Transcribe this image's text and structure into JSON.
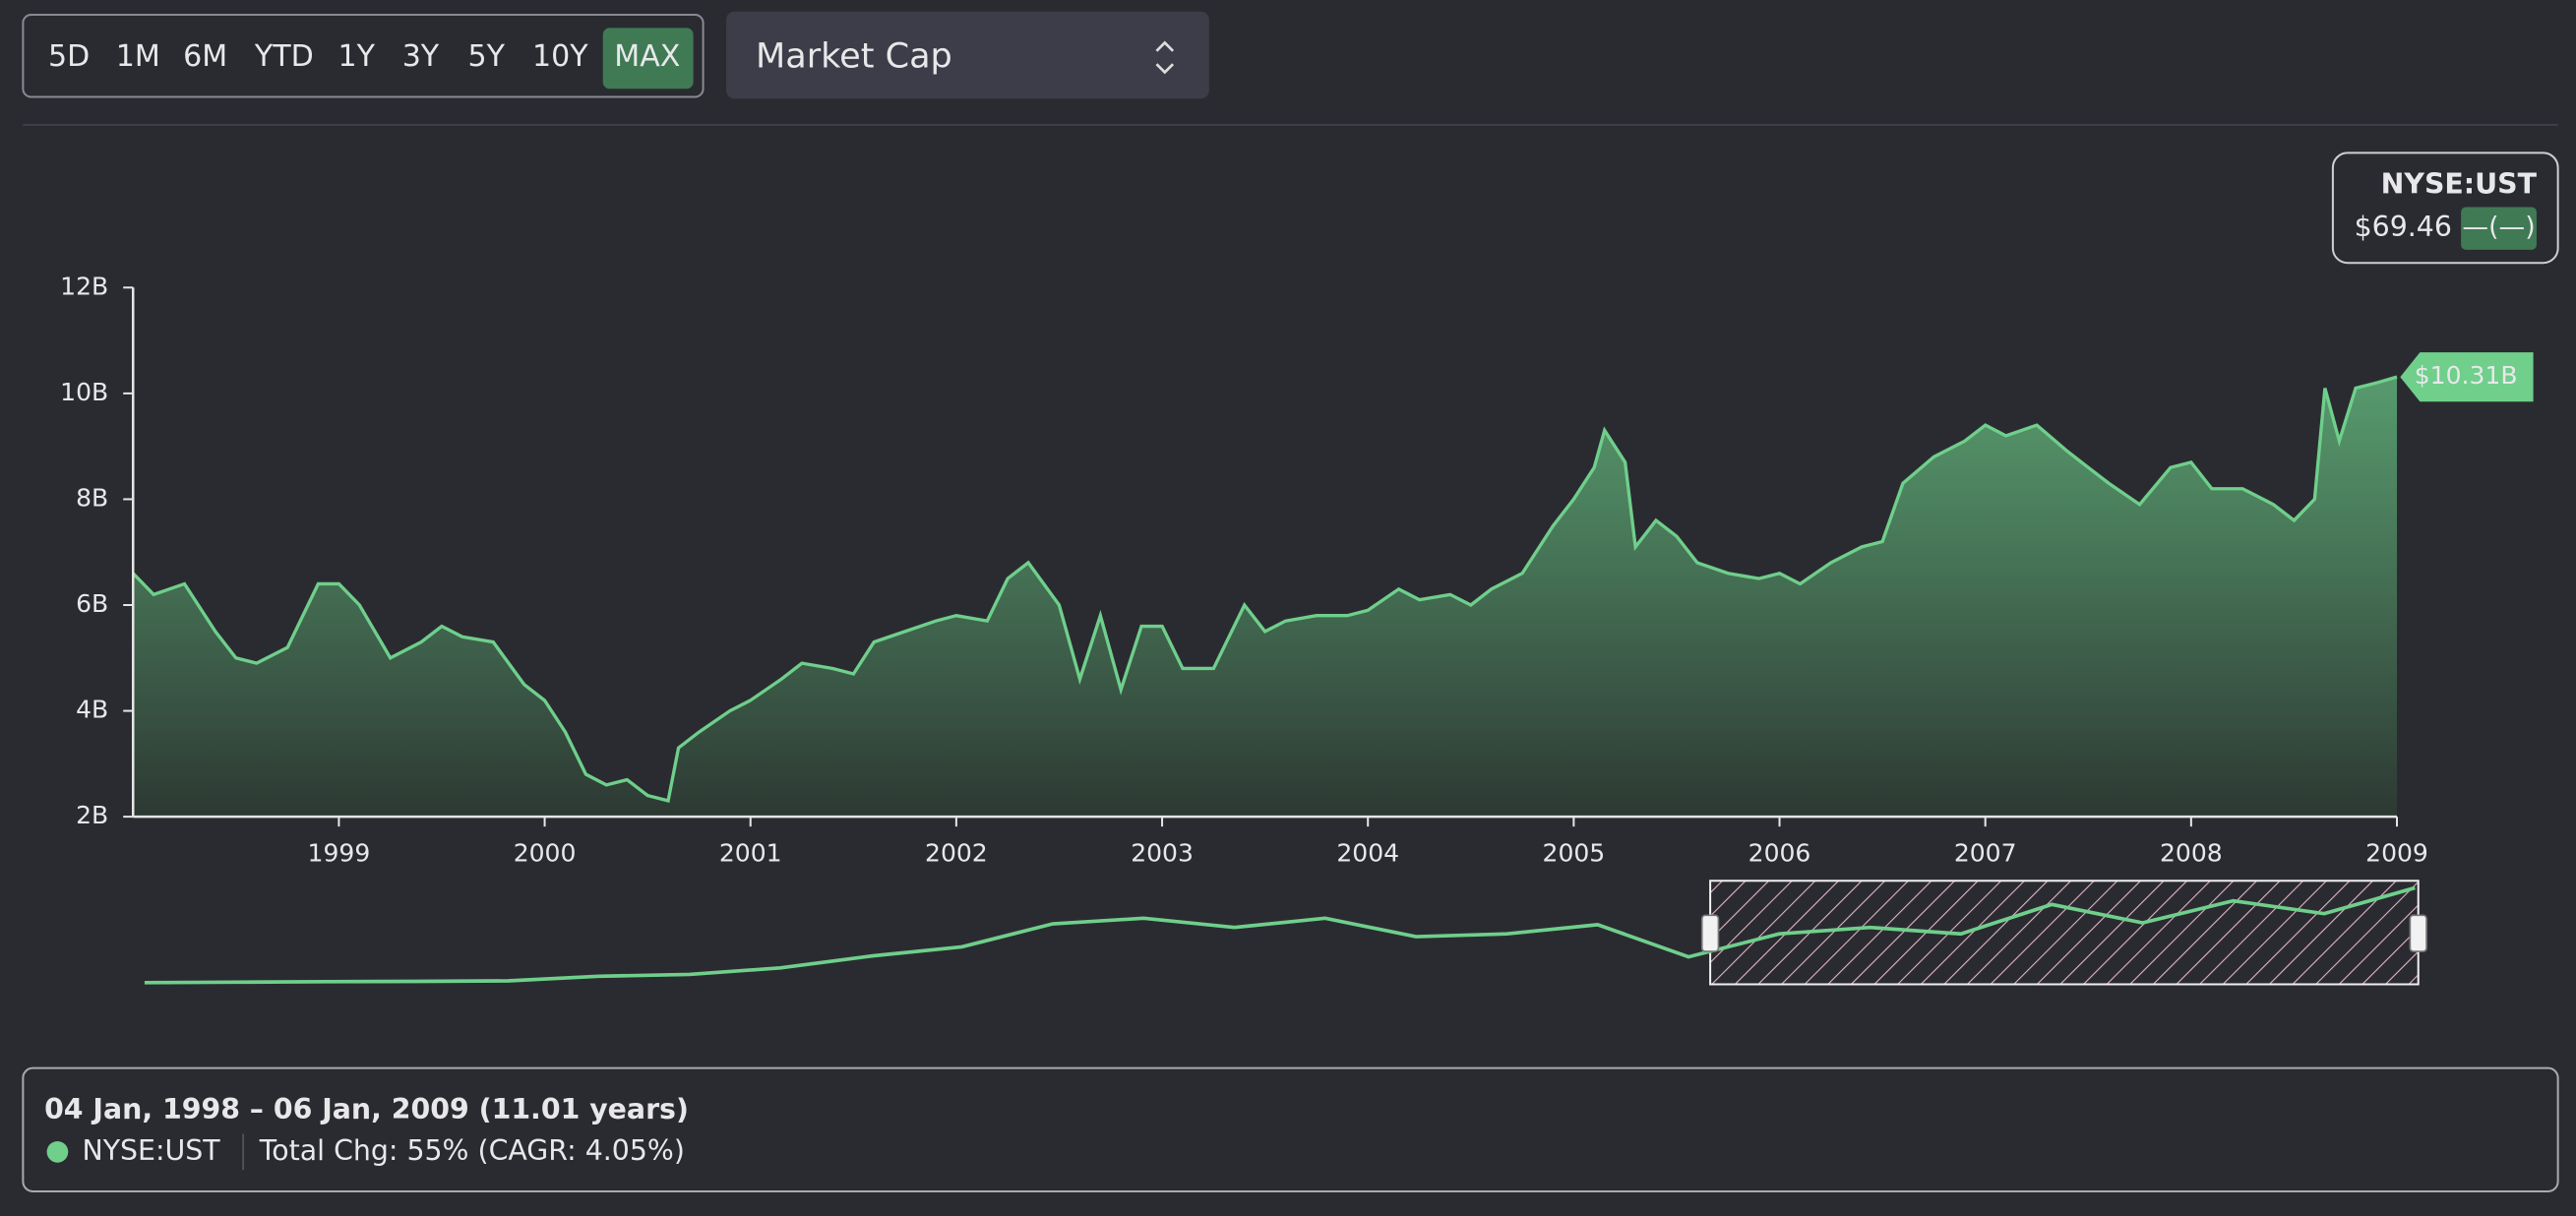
{
  "toolbar": {
    "range_buttons": [
      "5D",
      "1M",
      "6M",
      "YTD",
      "1Y",
      "3Y",
      "5Y",
      "10Y",
      "MAX"
    ],
    "active_index": 8,
    "metric_select": "Market Cap"
  },
  "legend_box": {
    "ticker": "NYSE:UST",
    "price": "$69.46",
    "change": "—(—)"
  },
  "chart_data": {
    "type": "line",
    "color": "#6fcf8b",
    "x": [
      1998.0,
      1998.1,
      1998.25,
      1998.4,
      1998.5,
      1998.6,
      1998.75,
      1998.9,
      1999.0,
      1999.1,
      1999.25,
      1999.4,
      1999.5,
      1999.6,
      1999.75,
      1999.9,
      2000.0,
      2000.1,
      2000.2,
      2000.3,
      2000.4,
      2000.5,
      2000.6,
      2000.65,
      2000.75,
      2000.9,
      2001.0,
      2001.15,
      2001.25,
      2001.4,
      2001.5,
      2001.6,
      2001.75,
      2001.9,
      2002.0,
      2002.15,
      2002.25,
      2002.35,
      2002.5,
      2002.6,
      2002.7,
      2002.8,
      2002.9,
      2003.0,
      2003.1,
      2003.25,
      2003.4,
      2003.5,
      2003.6,
      2003.75,
      2003.9,
      2004.0,
      2004.15,
      2004.25,
      2004.4,
      2004.5,
      2004.6,
      2004.75,
      2004.9,
      2005.0,
      2005.1,
      2005.15,
      2005.25,
      2005.3,
      2005.4,
      2005.5,
      2005.6,
      2005.75,
      2005.9,
      2006.0,
      2006.1,
      2006.25,
      2006.4,
      2006.5,
      2006.6,
      2006.75,
      2006.9,
      2007.0,
      2007.1,
      2007.25,
      2007.4,
      2007.5,
      2007.6,
      2007.75,
      2007.9,
      2008.0,
      2008.1,
      2008.25,
      2008.4,
      2008.5,
      2008.6,
      2008.65,
      2008.72,
      2008.8,
      2008.9,
      2009.0
    ],
    "values": [
      6.6,
      6.2,
      6.4,
      5.5,
      5.0,
      4.9,
      5.2,
      6.4,
      6.4,
      6.0,
      5.0,
      5.3,
      5.6,
      5.4,
      5.3,
      4.5,
      4.2,
      3.6,
      2.8,
      2.6,
      2.7,
      2.4,
      2.3,
      3.3,
      3.6,
      4.0,
      4.2,
      4.6,
      4.9,
      4.8,
      4.7,
      5.3,
      5.5,
      5.7,
      5.8,
      5.7,
      6.5,
      6.8,
      6.0,
      4.6,
      5.8,
      4.4,
      5.6,
      5.6,
      4.8,
      4.8,
      6.0,
      5.5,
      5.7,
      5.8,
      5.8,
      5.9,
      6.3,
      6.1,
      6.2,
      6.0,
      6.3,
      6.6,
      7.5,
      8.0,
      8.6,
      9.3,
      8.7,
      7.1,
      7.6,
      7.3,
      6.8,
      6.6,
      6.5,
      6.6,
      6.4,
      6.8,
      7.1,
      7.2,
      8.3,
      8.8,
      9.1,
      9.4,
      9.2,
      9.4,
      8.9,
      8.6,
      8.3,
      7.9,
      8.6,
      8.7,
      8.2,
      8.2,
      7.9,
      7.6,
      8.0,
      10.1,
      9.1,
      10.1,
      10.2,
      10.31
    ],
    "last_label": {
      "value": 10.31,
      "label": "$10.31B"
    },
    "xlim": [
      1998.0,
      2009.0
    ],
    "xticks": [
      1999,
      2000,
      2001,
      2002,
      2003,
      2004,
      2005,
      2006,
      2007,
      2008,
      2009
    ],
    "ylim": [
      2,
      12
    ],
    "yticks": [
      {
        "value": 2,
        "label": "2B"
      },
      {
        "value": 4,
        "label": "4B"
      },
      {
        "value": 6,
        "label": "6B"
      },
      {
        "value": 8,
        "label": "8B"
      },
      {
        "value": 10,
        "label": "10B"
      },
      {
        "value": 12,
        "label": "12B"
      }
    ]
  },
  "navigator": {
    "values": [
      0.0,
      0.05,
      0.1,
      0.15,
      0.2,
      0.7,
      0.9,
      1.6,
      2.9,
      3.9,
      6.4,
      7.0,
      6.0,
      7.0,
      5.0,
      5.3,
      6.3,
      2.8,
      5.3,
      6.0,
      5.3,
      8.5,
      6.5,
      8.9,
      7.5,
      10.3
    ]
  },
  "footer": {
    "range": "04 Jan, 1998 – 06 Jan, 2009 (11.01 years)",
    "ticker": "NYSE:UST",
    "stats": "Total Chg: 55% (CAGR: 4.05%)"
  }
}
